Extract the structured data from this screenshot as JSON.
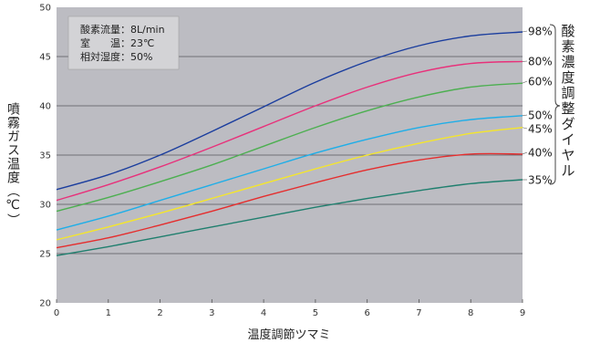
{
  "chart_data": {
    "type": "line",
    "title": "",
    "xlabel": "温度調節ツマミ",
    "ylabel": "噴霧ガス温度（℃）",
    "xlim": [
      0,
      9
    ],
    "ylim": [
      20,
      50
    ],
    "x_ticks": [
      "0",
      "1",
      "2",
      "3",
      "4",
      "5",
      "6",
      "7",
      "8",
      "9"
    ],
    "y_ticks": [
      "20",
      "25",
      "30",
      "35",
      "40",
      "45",
      "50"
    ],
    "grid": "horizontal",
    "legend_title": "酸素濃度調整ダイヤル",
    "conditions": [
      "酸素流量：8L/min",
      "室　　温：23℃",
      "相対湿度：50%"
    ],
    "x": [
      0,
      1,
      2,
      3,
      4,
      5,
      6,
      7,
      8,
      9
    ],
    "series": [
      {
        "name": "98%",
        "color": "#1a3d9e",
        "values": [
          31.5,
          33.0,
          35.0,
          37.4,
          39.9,
          42.4,
          44.5,
          46.1,
          47.1,
          47.5
        ]
      },
      {
        "name": "80%",
        "color": "#e8307a",
        "values": [
          30.4,
          32.0,
          33.8,
          35.8,
          37.9,
          40.0,
          41.9,
          43.4,
          44.3,
          44.5
        ]
      },
      {
        "name": "60%",
        "color": "#4caf50",
        "values": [
          29.3,
          30.7,
          32.3,
          34.0,
          35.9,
          37.8,
          39.5,
          40.9,
          41.9,
          42.3
        ]
      },
      {
        "name": "50%",
        "color": "#1eaee8",
        "values": [
          27.4,
          28.8,
          30.4,
          32.0,
          33.6,
          35.2,
          36.6,
          37.8,
          38.6,
          39.0
        ]
      },
      {
        "name": "45%",
        "color": "#f5e62a",
        "values": [
          26.4,
          27.7,
          29.1,
          30.6,
          32.1,
          33.6,
          35.0,
          36.2,
          37.2,
          37.8
        ]
      },
      {
        "name": "40%",
        "color": "#e52d2d",
        "values": [
          25.6,
          26.6,
          27.9,
          29.3,
          30.8,
          32.2,
          33.5,
          34.5,
          35.1,
          35.1
        ]
      },
      {
        "name": "35%",
        "color": "#1f7f6e",
        "values": [
          24.8,
          25.7,
          26.7,
          27.7,
          28.7,
          29.7,
          30.6,
          31.4,
          32.1,
          32.5
        ]
      }
    ],
    "series_label_order": [
      "98%",
      "80%",
      "60%",
      "50%",
      "45%",
      "40%",
      "35%"
    ]
  }
}
